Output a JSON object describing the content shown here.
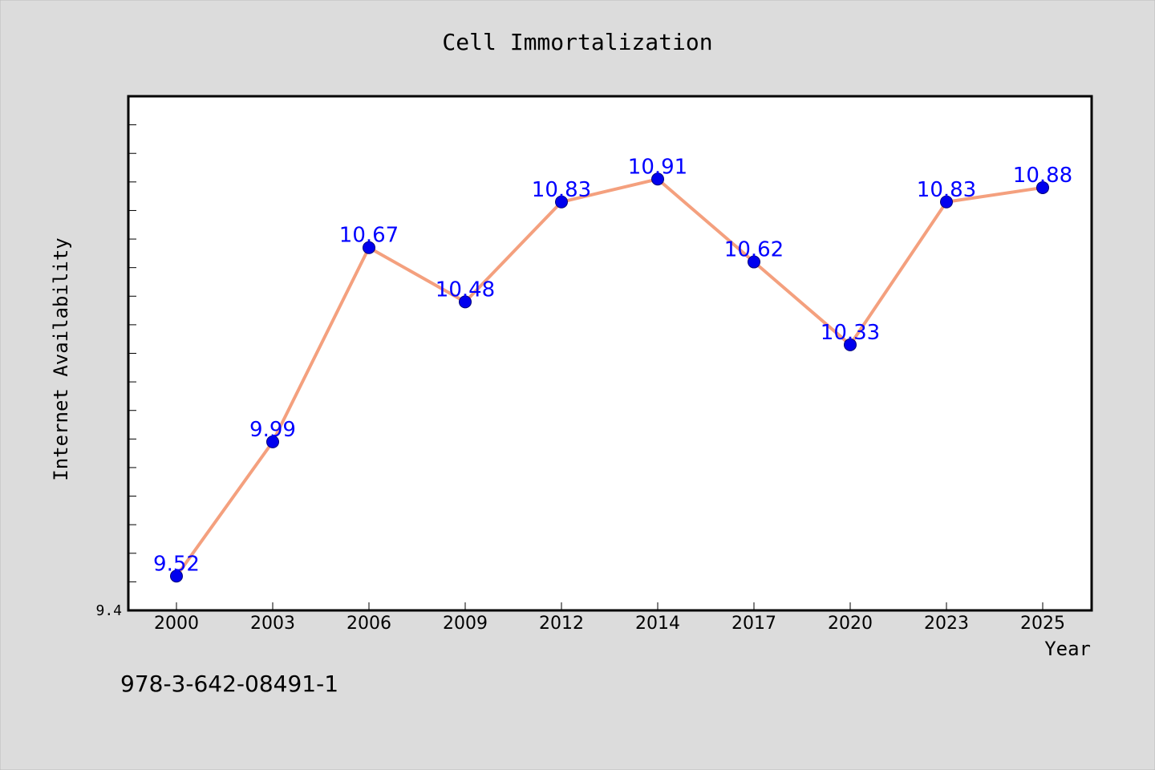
{
  "chart_data": {
    "type": "line",
    "title": "Cell Immortalization",
    "xlabel": "Year",
    "ylabel": "Internet Availability",
    "categories": [
      "2000",
      "2003",
      "2006",
      "2009",
      "2012",
      "2014",
      "2017",
      "2020",
      "2023",
      "2025"
    ],
    "series": [
      {
        "values": [
          9.52,
          9.99,
          10.67,
          10.48,
          10.83,
          10.91,
          10.62,
          10.33,
          10.83,
          10.88
        ]
      }
    ],
    "data_labels": [
      "9.52",
      "9.99",
      "10.67",
      "10.48",
      "10.83",
      "10.91",
      "10.62",
      "10.33",
      "10.83",
      "10.88"
    ],
    "ylim": [
      9.4,
      11.2
    ],
    "y_tick_labels": [
      "9.4"
    ],
    "y_minor_ticks": [
      9.5,
      9.6,
      9.7,
      9.8,
      9.9,
      10.0,
      10.1,
      10.2,
      10.3,
      10.4,
      10.5,
      10.6,
      10.7,
      10.8,
      10.9,
      11.0,
      11.1
    ],
    "grid": false,
    "colors": {
      "line": "#f4a07e",
      "marker": "#0000ee",
      "marker_edge": "#00007a",
      "label": "#0000ff",
      "plot_background": "#ffffff",
      "figure_background": "#dcdcdc"
    }
  },
  "footnote": "978-3-642-08491-1"
}
